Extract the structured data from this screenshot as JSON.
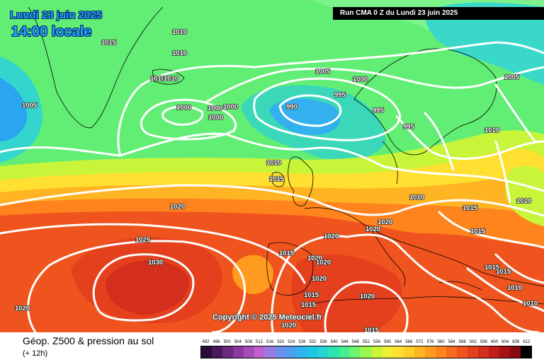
{
  "header": {
    "date": "Lundi 23 juin 2025",
    "time": "14:00 locale",
    "run": "Run CMA 0 Z du Lundi 23 juin 2025"
  },
  "copyright": "Copyright © 2025 Meteociel.fr",
  "footer": {
    "title": "Géop. Z500 & pression au sol",
    "step": "(+ 12h)"
  },
  "legend": {
    "ticks": [
      "492",
      "496",
      "500",
      "504",
      "508",
      "512",
      "516",
      "520",
      "524",
      "528",
      "532",
      "536",
      "540",
      "544",
      "548",
      "552",
      "556",
      "560",
      "564",
      "568",
      "572",
      "576",
      "580",
      "584",
      "588",
      "592",
      "596",
      "600",
      "604",
      "608",
      "612"
    ],
    "colors": [
      "#2b0a3d",
      "#4a1a5c",
      "#6a2a7e",
      "#8a3a9e",
      "#a54cb8",
      "#c060d0",
      "#9a7be0",
      "#6e8fec",
      "#4aa0ee",
      "#2eb3ec",
      "#1ec6e6",
      "#26d6d0",
      "#2ee4b0",
      "#46ee8e",
      "#6ef46e",
      "#9cf64c",
      "#c8f43a",
      "#eef038",
      "#ffe030",
      "#ffcc2a",
      "#ffb424",
      "#ff9c20",
      "#ff841e",
      "#f86a1e",
      "#f0541e",
      "#e4401e",
      "#d42e1c",
      "#c01e1a",
      "#a61216",
      "#880a12",
      "#000000"
    ]
  },
  "isobars": [
    {
      "value": "1010",
      "pos": "nw"
    },
    {
      "value": "1015",
      "pos": "nw"
    },
    {
      "value": "1010",
      "pos": "nw"
    },
    {
      "value": "1010",
      "pos": "iceland"
    },
    {
      "value": "1010",
      "pos": "north"
    },
    {
      "value": "1005",
      "pos": "north"
    },
    {
      "value": "1000",
      "pos": "north"
    },
    {
      "value": "995",
      "pos": "low"
    },
    {
      "value": "990",
      "pos": "low"
    },
    {
      "value": "995",
      "pos": "norway"
    },
    {
      "value": "995",
      "pos": "norway"
    },
    {
      "value": "1005",
      "pos": "ne"
    },
    {
      "value": "1010",
      "pos": "ne"
    },
    {
      "value": "1005",
      "pos": "west"
    },
    {
      "value": "1000",
      "pos": "atlantic"
    },
    {
      "value": "1000",
      "pos": "atlantic"
    },
    {
      "value": "1000",
      "pos": "atlantic"
    },
    {
      "value": "1000",
      "pos": "atlantic"
    },
    {
      "value": "1010",
      "pos": "uk"
    },
    {
      "value": "1015",
      "pos": "uk"
    },
    {
      "value": "1010",
      "pos": "baltic"
    },
    {
      "value": "1015",
      "pos": "europe"
    },
    {
      "value": "1010",
      "pos": "east"
    },
    {
      "value": "1020",
      "pos": "atlantic"
    },
    {
      "value": "1025",
      "pos": "atlantic"
    },
    {
      "value": "1030",
      "pos": "azores"
    },
    {
      "value": "1020",
      "pos": "sw"
    },
    {
      "value": "1020",
      "pos": "france"
    },
    {
      "value": "1020",
      "pos": "alps"
    },
    {
      "value": "1020",
      "pos": "italy"
    },
    {
      "value": "1015",
      "pos": "iberia"
    },
    {
      "value": "1020",
      "pos": "iberia"
    },
    {
      "value": "1020",
      "pos": "iberia"
    },
    {
      "value": "1020",
      "pos": "iberia"
    },
    {
      "value": "1015",
      "pos": "iberia"
    },
    {
      "value": "1015",
      "pos": "iberia"
    },
    {
      "value": "1020",
      "pos": "africa"
    },
    {
      "value": "1020",
      "pos": "africa"
    },
    {
      "value": "1015",
      "pos": "africa"
    },
    {
      "value": "1015",
      "pos": "balkans"
    },
    {
      "value": "1015",
      "pos": "balkans"
    },
    {
      "value": "1015",
      "pos": "balkans"
    },
    {
      "value": "1010",
      "pos": "turkey"
    },
    {
      "value": "1010",
      "pos": "turkey"
    }
  ]
}
